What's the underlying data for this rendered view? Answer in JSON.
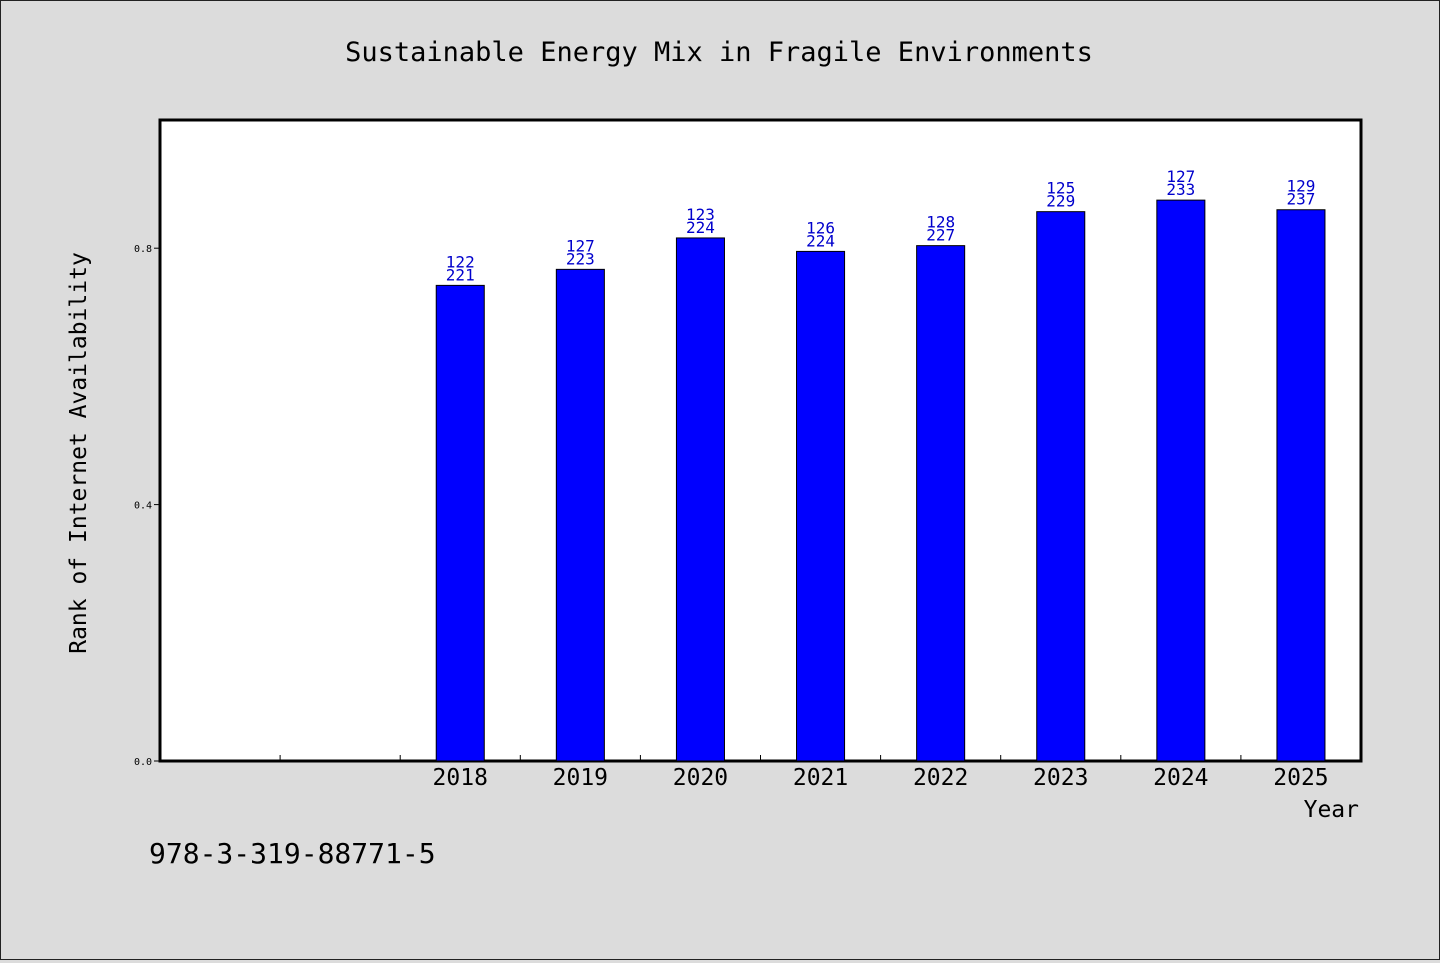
{
  "chart_data": {
    "type": "bar",
    "title": "Sustainable Energy Mix in Fragile Environments",
    "xlabel": "Year",
    "ylabel": "Rank of Internet Availability",
    "categories": [
      "2018",
      "2019",
      "2020",
      "2021",
      "2022",
      "2023",
      "2024",
      "2025"
    ],
    "values": [
      0.742,
      0.767,
      0.816,
      0.795,
      0.804,
      0.857,
      0.875,
      0.86
    ],
    "labels_top": [
      "122",
      "127",
      "123",
      "126",
      "128",
      "125",
      "127",
      "129"
    ],
    "labels_bottom": [
      "221",
      "223",
      "224",
      "224",
      "227",
      "229",
      "233",
      "237"
    ],
    "yticks": [
      "0.0",
      "0.4",
      "0.8"
    ],
    "ylim": [
      0,
      1.0
    ],
    "bar_color": "#0000ff",
    "label_color": "#0000cc",
    "grid": false,
    "legend": "none"
  },
  "footer_code": "978-3-319-88771-5"
}
